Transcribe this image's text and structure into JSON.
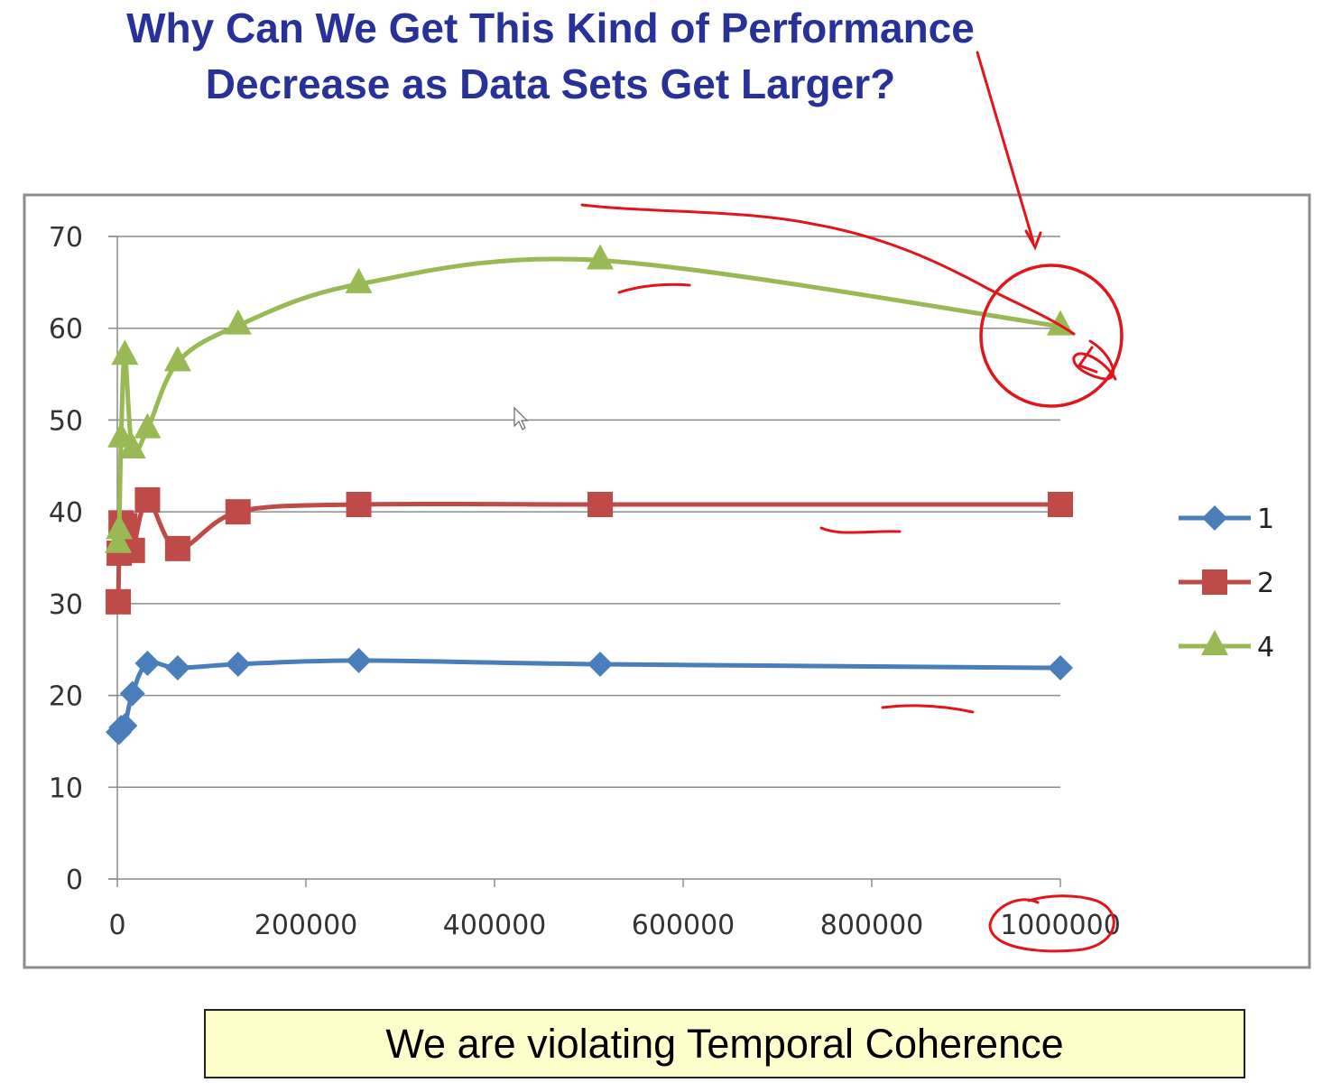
{
  "slide": {
    "title_line1": "Why Can We Get This Kind of Performance",
    "title_line2": "Decrease as Data Sets Get Larger?",
    "callout": "We are violating Temporal Coherence"
  },
  "colors": {
    "title": "#28309a",
    "annotation": "#e3141b",
    "callout_bg": "#ffffcc"
  },
  "chart_data": {
    "type": "line",
    "title": "",
    "xlabel": "",
    "ylabel": "",
    "xlim": [
      0,
      1000000
    ],
    "ylim": [
      0,
      70
    ],
    "x_ticks": [
      0,
      200000,
      400000,
      600000,
      800000,
      1000000
    ],
    "x_tick_labels": [
      "0",
      "200000",
      "400000",
      "600000",
      "800000",
      "1000000"
    ],
    "y_ticks": [
      0,
      10,
      20,
      30,
      40,
      50,
      60,
      70
    ],
    "y_tick_labels": [
      "0",
      "10",
      "20",
      "30",
      "40",
      "50",
      "60",
      "70"
    ],
    "grid": "horizontal",
    "legend": "right",
    "series": [
      {
        "name": "1",
        "color": "#4a7ebb",
        "marker": "diamond",
        "points": [
          [
            1000,
            16
          ],
          [
            2000,
            16
          ],
          [
            4000,
            16.5
          ],
          [
            8000,
            16.7
          ],
          [
            16000,
            20.2
          ],
          [
            32000,
            23.5
          ],
          [
            64000,
            23
          ],
          [
            128000,
            23.4
          ],
          [
            256000,
            23.8
          ],
          [
            512000,
            23.4
          ],
          [
            1000000,
            23
          ]
        ]
      },
      {
        "name": "2",
        "color": "#be4b48",
        "marker": "square",
        "points": [
          [
            1000,
            30.2
          ],
          [
            2000,
            35.5
          ],
          [
            4000,
            38.8
          ],
          [
            8000,
            38.5
          ],
          [
            16000,
            35.8
          ],
          [
            32000,
            41.3
          ],
          [
            64000,
            36
          ],
          [
            128000,
            40
          ],
          [
            256000,
            40.8
          ],
          [
            512000,
            40.8
          ],
          [
            1000000,
            40.8
          ]
        ]
      },
      {
        "name": "4",
        "color": "#98b954",
        "marker": "triangle",
        "points": [
          [
            1000,
            36.5
          ],
          [
            2000,
            38
          ],
          [
            4000,
            48
          ],
          [
            8000,
            57
          ],
          [
            16000,
            46.8
          ],
          [
            32000,
            49
          ],
          [
            64000,
            56.3
          ],
          [
            128000,
            60.3
          ],
          [
            256000,
            64.8
          ],
          [
            512000,
            67.4
          ],
          [
            1000000,
            60.2
          ]
        ]
      }
    ]
  }
}
